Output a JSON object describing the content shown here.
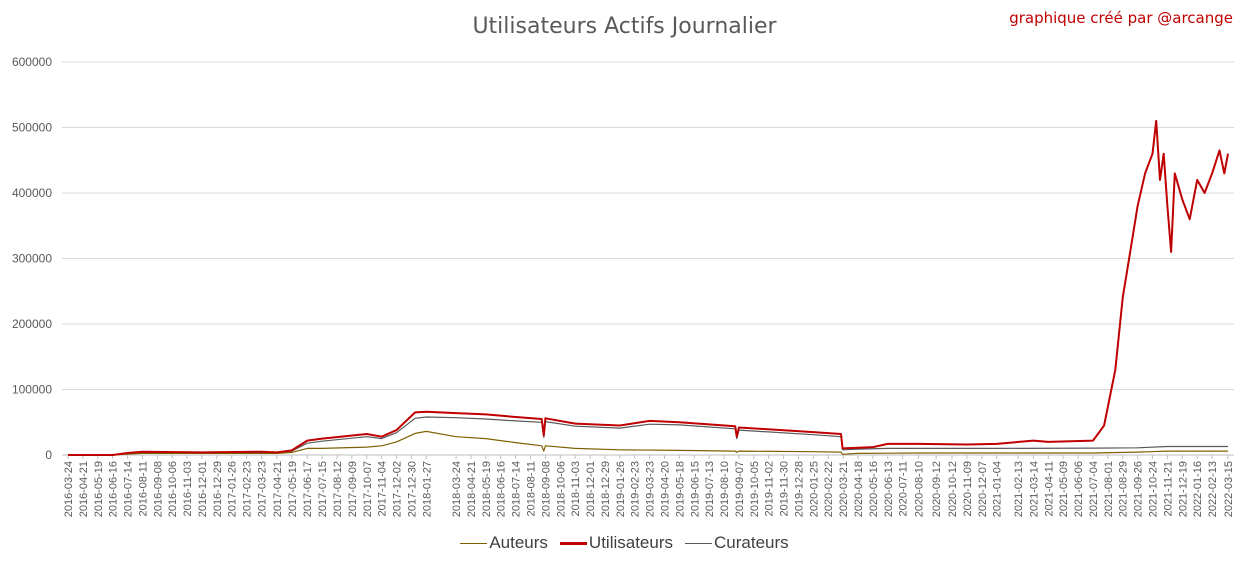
{
  "chart_data": {
    "type": "line",
    "title": "Utilisateurs Actifs Journalier",
    "credit": "graphique créé par @arcange",
    "xlabel": "",
    "ylabel": "",
    "ylim": [
      0,
      600000
    ],
    "y_ticks": [
      "0",
      "100000",
      "200000",
      "300000",
      "400000",
      "500000",
      "600000"
    ],
    "grid": true,
    "legend_position": "bottom",
    "x_tick_labels": [
      "2016-03-24",
      "2016-04-21",
      "2016-05-19",
      "2016-06-16",
      "2016-07-14",
      "2016-08-11",
      "2016-09-08",
      "2016-10-06",
      "2016-11-03",
      "2016-12-01",
      "2016-12-29",
      "2017-01-26",
      "2017-02-23",
      "2017-03-23",
      "2017-04-21",
      "2017-05-19",
      "2017-06-17",
      "2017-07-15",
      "2017-08-12",
      "2017-09-09",
      "2017-10-07",
      "2017-11-04",
      "2017-12-02",
      "2017-12-30",
      "2018-01-27",
      "2018-03-24",
      "2018-04-21",
      "2018-05-19",
      "2018-06-16",
      "2018-07-14",
      "2018-08-11",
      "2018-09-08",
      "2018-10-06",
      "2018-11-03",
      "2018-12-01",
      "2018-12-29",
      "2019-01-26",
      "2019-02-23",
      "2019-03-23",
      "2019-04-20",
      "2019-05-18",
      "2019-06-15",
      "2019-07-13",
      "2019-08-10",
      "2019-09-07",
      "2019-10-05",
      "2019-11-02",
      "2019-11-30",
      "2019-12-28",
      "2020-01-25",
      "2020-02-22",
      "2020-03-21",
      "2020-04-18",
      "2020-05-16",
      "2020-06-13",
      "2020-07-11",
      "2020-08-10",
      "2020-09-12",
      "2020-10-12",
      "2020-11-09",
      "2020-12-07",
      "2021-01-04",
      "2021-02-13",
      "2021-03-14",
      "2021-04-11",
      "2021-05-09",
      "2021-06-06",
      "2021-07-04",
      "2021-08-01",
      "2021-08-29",
      "2021-09-26",
      "2021-10-24",
      "2021-11-21",
      "2021-12-19",
      "2022-01-16",
      "2022-02-13",
      "2022-03-15"
    ],
    "series": [
      {
        "name": "Auteurs",
        "color": "#7f6000",
        "points": [
          [
            "2016-03-24",
            0
          ],
          [
            "2016-06-16",
            0
          ],
          [
            "2016-07-14",
            1500
          ],
          [
            "2016-08-11",
            2500
          ],
          [
            "2016-12-01",
            2500
          ],
          [
            "2017-03-23",
            2500
          ],
          [
            "2017-04-21",
            2500
          ],
          [
            "2017-05-19",
            4000
          ],
          [
            "2017-06-17",
            10000
          ],
          [
            "2017-07-15",
            10000
          ],
          [
            "2017-10-07",
            12000
          ],
          [
            "2017-11-04",
            14000
          ],
          [
            "2017-12-02",
            20000
          ],
          [
            "2018-01-06",
            33000
          ],
          [
            "2018-01-27",
            36000
          ],
          [
            "2018-03-24",
            28000
          ],
          [
            "2018-05-19",
            25000
          ],
          [
            "2018-07-14",
            19000
          ],
          [
            "2018-09-01",
            14000
          ],
          [
            "2018-09-05",
            6000
          ],
          [
            "2018-09-08",
            14000
          ],
          [
            "2018-11-03",
            10000
          ],
          [
            "2019-01-26",
            8000
          ],
          [
            "2019-05-18",
            7000
          ],
          [
            "2019-08-31",
            6000
          ],
          [
            "2019-09-03",
            4000
          ],
          [
            "2019-09-07",
            6000
          ],
          [
            "2020-01-25",
            5000
          ],
          [
            "2020-03-17",
            4500
          ],
          [
            "2020-03-20",
            1000
          ],
          [
            "2020-04-18",
            2500
          ],
          [
            "2020-08-10",
            3000
          ],
          [
            "2021-01-04",
            3000
          ],
          [
            "2021-07-04",
            3000
          ],
          [
            "2021-09-26",
            4500
          ],
          [
            "2021-11-21",
            6000
          ],
          [
            "2022-03-15",
            6000
          ]
        ]
      },
      {
        "name": "Utilisateurs",
        "color": "#c00000",
        "points": [
          [
            "2016-03-24",
            0
          ],
          [
            "2016-06-16",
            0
          ],
          [
            "2016-07-14",
            3000
          ],
          [
            "2016-08-11",
            5000
          ],
          [
            "2016-12-01",
            4000
          ],
          [
            "2017-03-23",
            5000
          ],
          [
            "2017-04-21",
            4000
          ],
          [
            "2017-05-19",
            7000
          ],
          [
            "2017-06-17",
            22000
          ],
          [
            "2017-07-15",
            25000
          ],
          [
            "2017-10-07",
            32000
          ],
          [
            "2017-11-04",
            28000
          ],
          [
            "2017-12-02",
            38000
          ],
          [
            "2018-01-06",
            65000
          ],
          [
            "2018-01-27",
            66000
          ],
          [
            "2018-03-24",
            64000
          ],
          [
            "2018-05-19",
            62000
          ],
          [
            "2018-07-14",
            58000
          ],
          [
            "2018-09-01",
            55000
          ],
          [
            "2018-09-05",
            30000
          ],
          [
            "2018-09-08",
            56000
          ],
          [
            "2018-11-03",
            48000
          ],
          [
            "2019-01-26",
            45000
          ],
          [
            "2019-03-23",
            52000
          ],
          [
            "2019-05-18",
            50000
          ],
          [
            "2019-08-31",
            44000
          ],
          [
            "2019-09-03",
            28000
          ],
          [
            "2019-09-07",
            42000
          ],
          [
            "2020-01-25",
            35000
          ],
          [
            "2020-03-17",
            32000
          ],
          [
            "2020-03-20",
            10000
          ],
          [
            "2020-04-18",
            11000
          ],
          [
            "2020-05-16",
            12000
          ],
          [
            "2020-06-13",
            17000
          ],
          [
            "2020-08-10",
            17000
          ],
          [
            "2020-11-09",
            16000
          ],
          [
            "2021-01-04",
            17000
          ],
          [
            "2021-03-14",
            22000
          ],
          [
            "2021-04-11",
            20000
          ],
          [
            "2021-07-04",
            22000
          ],
          [
            "2021-07-25",
            45000
          ],
          [
            "2021-08-15",
            130000
          ],
          [
            "2021-08-29",
            240000
          ],
          [
            "2021-09-12",
            310000
          ],
          [
            "2021-09-26",
            380000
          ],
          [
            "2021-10-10",
            430000
          ],
          [
            "2021-10-24",
            460000
          ],
          [
            "2021-10-31",
            510000
          ],
          [
            "2021-11-07",
            420000
          ],
          [
            "2021-11-14",
            460000
          ],
          [
            "2021-11-21",
            380000
          ],
          [
            "2021-11-28",
            310000
          ],
          [
            "2021-12-05",
            430000
          ],
          [
            "2021-12-19",
            390000
          ],
          [
            "2022-01-02",
            360000
          ],
          [
            "2022-01-16",
            420000
          ],
          [
            "2022-01-30",
            400000
          ],
          [
            "2022-02-13",
            430000
          ],
          [
            "2022-02-27",
            465000
          ],
          [
            "2022-03-08",
            430000
          ],
          [
            "2022-03-15",
            460000
          ]
        ]
      },
      {
        "name": "Curateurs",
        "color": "#595959",
        "points": [
          [
            "2016-03-24",
            0
          ],
          [
            "2016-06-16",
            0
          ],
          [
            "2016-07-14",
            2500
          ],
          [
            "2016-08-11",
            4000
          ],
          [
            "2016-12-01",
            3500
          ],
          [
            "2017-03-23",
            4000
          ],
          [
            "2017-04-21",
            3500
          ],
          [
            "2017-05-19",
            6000
          ],
          [
            "2017-06-17",
            18000
          ],
          [
            "2017-07-15",
            21000
          ],
          [
            "2017-10-07",
            28000
          ],
          [
            "2017-11-04",
            25000
          ],
          [
            "2017-12-02",
            34000
          ],
          [
            "2018-01-06",
            56000
          ],
          [
            "2018-01-27",
            58000
          ],
          [
            "2018-03-24",
            57000
          ],
          [
            "2018-05-19",
            55000
          ],
          [
            "2018-07-14",
            52000
          ],
          [
            "2018-09-01",
            50000
          ],
          [
            "2018-09-05",
            27000
          ],
          [
            "2018-09-08",
            51000
          ],
          [
            "2018-11-03",
            44000
          ],
          [
            "2019-01-26",
            41000
          ],
          [
            "2019-03-23",
            47000
          ],
          [
            "2019-05-18",
            46000
          ],
          [
            "2019-08-31",
            40000
          ],
          [
            "2019-09-03",
            25000
          ],
          [
            "2019-09-07",
            38000
          ],
          [
            "2020-01-25",
            31000
          ],
          [
            "2020-03-17",
            28000
          ],
          [
            "2020-03-20",
            8000
          ],
          [
            "2020-04-18",
            9000
          ],
          [
            "2020-06-13",
            10000
          ],
          [
            "2020-08-10",
            10000
          ],
          [
            "2021-01-04",
            10000
          ],
          [
            "2021-07-04",
            10500
          ],
          [
            "2021-09-26",
            11000
          ],
          [
            "2021-11-21",
            13000
          ],
          [
            "2022-03-15",
            13000
          ]
        ]
      }
    ]
  }
}
